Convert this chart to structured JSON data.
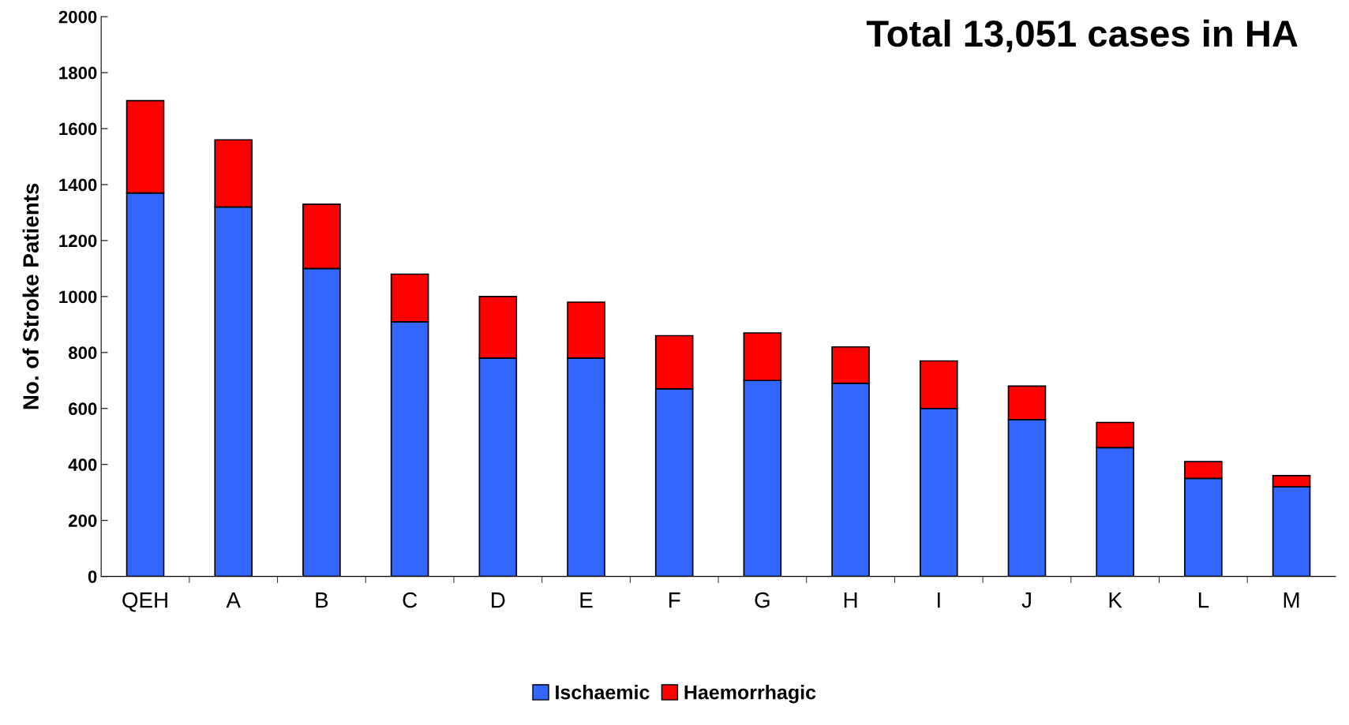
{
  "chart_data": {
    "type": "bar",
    "title": "Total 13,051 cases in HA",
    "ylabel": "No. of Stroke Patients",
    "categories": [
      "QEH",
      "A",
      "B",
      "C",
      "D",
      "E",
      "F",
      "G",
      "H",
      "I",
      "J",
      "K",
      "L",
      "M"
    ],
    "stacked": true,
    "series": [
      {
        "name": "Ischaemic",
        "color": "#3366ff",
        "values": [
          1370,
          1320,
          1100,
          910,
          780,
          780,
          670,
          700,
          690,
          600,
          560,
          460,
          350,
          320
        ]
      },
      {
        "name": "Haemorrhagic",
        "color": "#ff0000",
        "values": [
          330,
          240,
          230,
          170,
          220,
          200,
          190,
          170,
          130,
          170,
          120,
          90,
          60,
          40
        ]
      }
    ],
    "ylim": [
      0,
      2000
    ],
    "yticks": [
      0,
      200,
      400,
      600,
      800,
      1000,
      1200,
      1400,
      1600,
      1800,
      2000
    ],
    "grid": false,
    "legend": "bottom"
  }
}
